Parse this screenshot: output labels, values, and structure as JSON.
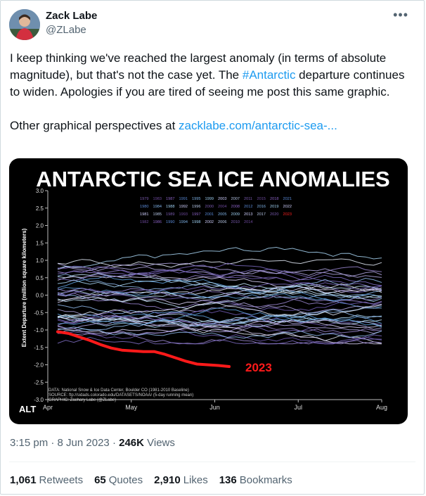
{
  "author": {
    "name": "Zack Labe",
    "handle": "@ZLabe"
  },
  "tweet": {
    "line1_a": "I keep thinking we've reached the largest anomaly (in terms of absolute magnitude), but that's not the case yet. The ",
    "hashtag": "#Antarctic",
    "line1_b": " departure continues to widen. Apologies if you are tired of seeing me post this same graphic.",
    "line2_a": "Other graphical perspectives at ",
    "link": "zacklabe.com/antarctic-sea-..."
  },
  "chart": {
    "title": "ANTARCTIC SEA ICE ANOMALIES",
    "ylabel": "Extent Departure (million square kilometers)",
    "yticks": [
      "3.0",
      "2.5",
      "2.0",
      "1.5",
      "1.0",
      "0.5",
      "0.0",
      "-0.5",
      "-1.0",
      "-1.5",
      "-2.0",
      "-2.5",
      "-3.0"
    ],
    "xticks": [
      "Apr",
      "May",
      "Jun",
      "Jul",
      "Aug"
    ],
    "label_2023": "2023",
    "alt": "ALT",
    "legend_rows": [
      [
        "1979",
        "1983",
        "1987",
        "1991",
        "1995",
        "1999",
        "2003",
        "2007",
        "2011",
        "2015",
        "2018",
        "2021"
      ],
      [
        "1980",
        "1984",
        "1988",
        "1992",
        "1996",
        "2000",
        "2004",
        "2008",
        "2012",
        "2016",
        "2019",
        "2022"
      ],
      [
        "1981",
        "1985",
        "1989",
        "1993",
        "1997",
        "2001",
        "2005",
        "2009",
        "2013",
        "2017",
        "2020",
        "2023"
      ],
      [
        "1982",
        "1986",
        "1990",
        "1994",
        "1998",
        "2002",
        "2006",
        "2010",
        "2014"
      ]
    ],
    "credit1": "DATA: National Snow & Ice Data Center, Boulder CO (1981-2010 Baseline)",
    "credit2": "SOURCE: ftp://sidads.colorado.edu/DATASETS/NOAA/ (5-day running mean)",
    "credit3": "GRAPHIC: Zachary Labe (@ZLabe)"
  },
  "meta": {
    "time": "3:15 pm",
    "sep1": " · ",
    "date": "8 Jun 2023",
    "sep2": " · ",
    "views_count": "246K",
    "views_label": " Views"
  },
  "stats": {
    "retweets_count": "1,061",
    "retweets_label": "Retweets",
    "quotes_count": "65",
    "quotes_label": "Quotes",
    "likes_count": "2,910",
    "likes_label": "Likes",
    "bookmarks_count": "136",
    "bookmarks_label": "Bookmarks"
  }
}
